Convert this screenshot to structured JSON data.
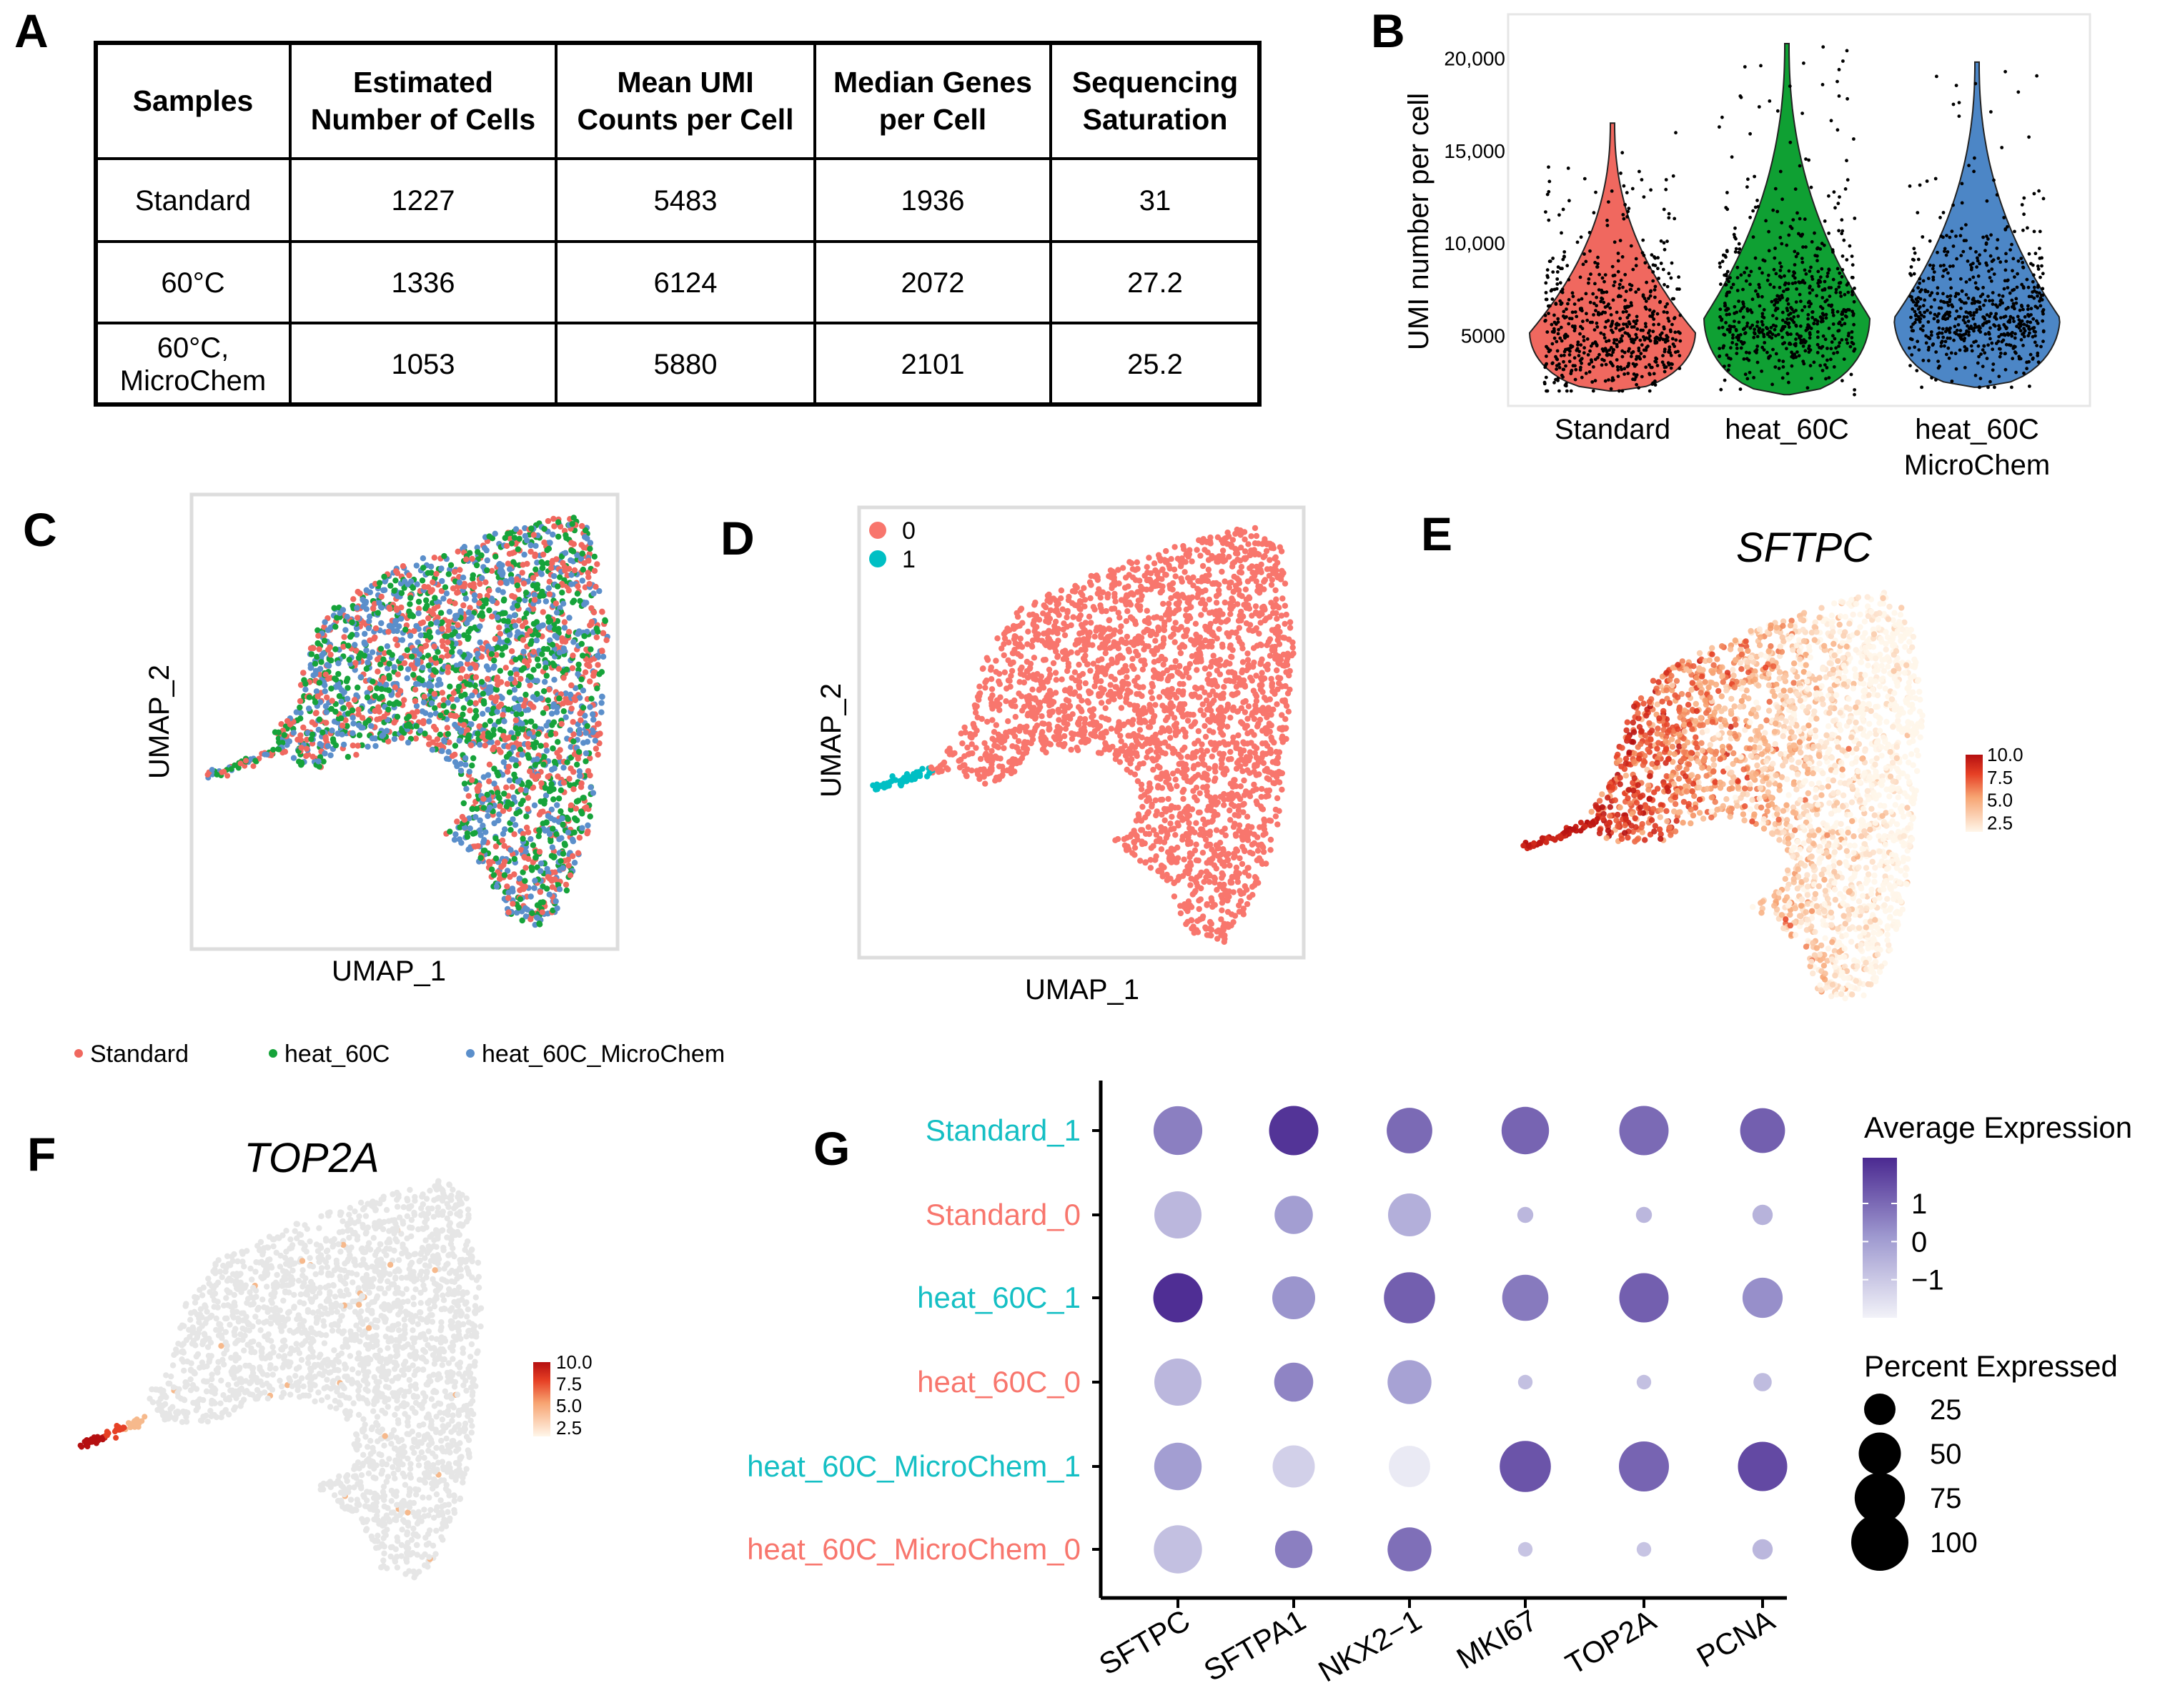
{
  "panels": {
    "A": "A",
    "B": "B",
    "C": "C",
    "D": "D",
    "E": "E",
    "F": "F",
    "G": "G"
  },
  "table": {
    "headers": [
      [
        "Samples"
      ],
      [
        "Estimated",
        "Number of Cells"
      ],
      [
        "Mean UMI",
        "Counts per Cell"
      ],
      [
        "Median Genes",
        "per Cell"
      ],
      [
        "Sequencing",
        "Saturation"
      ]
    ],
    "rows": [
      [
        [
          "Standard"
        ],
        [
          "1227"
        ],
        [
          "5483"
        ],
        [
          "1936"
        ],
        [
          "31"
        ]
      ],
      [
        [
          "60°C"
        ],
        [
          "1336"
        ],
        [
          "6124"
        ],
        [
          "2072"
        ],
        [
          "27.2"
        ]
      ],
      [
        [
          "60°C,",
          "MicroChem"
        ],
        [
          "1053"
        ],
        [
          "5880"
        ],
        [
          "2101"
        ],
        [
          "25.2"
        ]
      ]
    ]
  },
  "chart_data": [
    {
      "panel": "A",
      "type": "table",
      "columns": [
        "Samples",
        "Estimated Number of Cells",
        "Mean UMI Counts per Cell",
        "Median Genes per Cell",
        "Sequencing Saturation"
      ],
      "rows": [
        [
          "Standard",
          1227,
          5483,
          1936,
          31
        ],
        [
          "60°C",
          1336,
          6124,
          2072,
          27.2
        ],
        [
          "60°C, MicroChem",
          1053,
          5880,
          2101,
          25.2
        ]
      ]
    },
    {
      "panel": "B",
      "type": "violin",
      "ylabel": "UMI number per cell",
      "yticks": [
        "5000",
        "10,000",
        "15,000",
        "20,000"
      ],
      "ytick_values": [
        5000,
        10000,
        15000,
        20000
      ],
      "ylim": [
        1500,
        22000
      ],
      "categories": [
        [
          "Standard"
        ],
        [
          "heat_60C"
        ],
        [
          "heat_60C",
          "MicroChem"
        ]
      ],
      "series": [
        {
          "name": "Standard",
          "color": "#F0685F",
          "min": 2000,
          "max": 16500,
          "mode": 5200
        },
        {
          "name": "heat_60C",
          "color": "#0FA033",
          "min": 1800,
          "max": 20800,
          "mode": 6000
        },
        {
          "name": "heat_60C_MicroChem",
          "color": "#4C86C6",
          "min": 2200,
          "max": 19800,
          "mode": 6000
        }
      ]
    },
    {
      "panel": "C",
      "type": "scatter",
      "xlabel": "UMAP_1",
      "ylabel": "UMAP_2",
      "legend": [
        {
          "label": "Standard",
          "color": "#F0685F"
        },
        {
          "label": "heat_60C",
          "color": "#16A33A"
        },
        {
          "label": "heat_60C_MicroChem",
          "color": "#5B8FCB"
        }
      ]
    },
    {
      "panel": "D",
      "type": "scatter",
      "xlabel": "UMAP_1",
      "ylabel": "UMAP_2",
      "legend": [
        {
          "label": "0",
          "color": "#F8766D"
        },
        {
          "label": "1",
          "color": "#00BFC4"
        }
      ]
    },
    {
      "panel": "E",
      "type": "scatter",
      "title": "SFTPC",
      "colorbar_ticks": [
        "10.0",
        "7.5",
        "5.0",
        "2.5"
      ],
      "colorbar_values": [
        10.0,
        7.5,
        5.0,
        2.5
      ]
    },
    {
      "panel": "F",
      "type": "scatter",
      "title": "TOP2A",
      "colorbar_ticks": [
        "10.0",
        "7.5",
        "5.0",
        "2.5"
      ],
      "colorbar_values": [
        10.0,
        7.5,
        5.0,
        2.5
      ]
    },
    {
      "panel": "G",
      "type": "scatter",
      "subtype": "dotplot",
      "genes": [
        "SFTPC",
        "SFTPA1",
        "NKX2−1",
        "MKI67",
        "TOP2A",
        "PCNA"
      ],
      "groups": [
        {
          "label": "Standard_1",
          "color": "#14BFC4"
        },
        {
          "label": "Standard_0",
          "color": "#F8766D"
        },
        {
          "label": "heat_60C_1",
          "color": "#14BFC4"
        },
        {
          "label": "heat_60C_0",
          "color": "#F8766D"
        },
        {
          "label": "heat_60C_MicroChem_1",
          "color": "#14BFC4"
        },
        {
          "label": "heat_60C_MicroChem_0",
          "color": "#F8766D"
        }
      ],
      "percent_expressed": [
        [
          70,
          72,
          60,
          66,
          72,
          58
        ],
        [
          65,
          40,
          52,
          4,
          4,
          8
        ],
        [
          72,
          52,
          78,
          62,
          72,
          45
        ],
        [
          65,
          42,
          55,
          3,
          3,
          6
        ],
        [
          66,
          50,
          48,
          78,
          74,
          72
        ],
        [
          68,
          38,
          55,
          3,
          3,
          8
        ]
      ],
      "average_expression": [
        [
          0.6,
          2.0,
          1.0,
          1.1,
          1.0,
          1.2
        ],
        [
          -0.6,
          0.0,
          -0.4,
          -0.6,
          -0.6,
          -0.5
        ],
        [
          2.1,
          0.2,
          1.2,
          0.7,
          1.2,
          0.3
        ],
        [
          -0.6,
          0.5,
          -0.1,
          -0.8,
          -0.8,
          -0.7
        ],
        [
          0.0,
          -1.2,
          -1.8,
          1.4,
          1.1,
          1.6
        ],
        [
          -0.8,
          0.6,
          0.9,
          -0.9,
          -0.9,
          -0.6
        ]
      ],
      "color_legend_title": "Average Expression",
      "color_legend_ticks": [
        "1",
        "0",
        "−1"
      ],
      "color_legend_values": [
        1,
        0,
        -1
      ],
      "size_legend_title": "Percent Expressed",
      "size_legend_ticks": [
        "25",
        "50",
        "75",
        "100"
      ],
      "size_legend_values": [
        25,
        50,
        75,
        100
      ]
    }
  ]
}
